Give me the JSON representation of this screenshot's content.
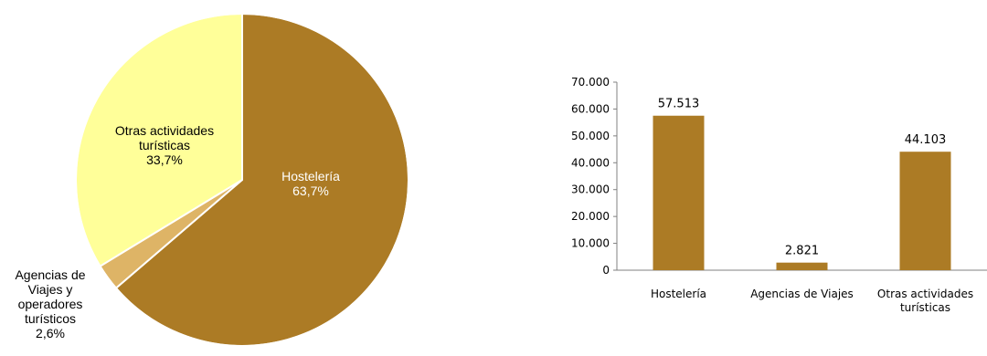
{
  "chart_data": [
    {
      "type": "pie",
      "labels": [
        "Hostelería",
        "Agencias de Viajes y operadores turísticos",
        "Otras actividades turísticas"
      ],
      "label_lines": [
        [
          "Hostelería",
          "63,7%"
        ],
        [
          "Agencias de",
          "Viajes y",
          "operadores",
          "turísticos",
          "2,6%"
        ],
        [
          "Otras actividades",
          "turísticas",
          "33,7%"
        ]
      ],
      "values": [
        63.7,
        2.6,
        33.7
      ],
      "colors": [
        "#AC7B25",
        "#DEB466",
        "#FFFF99"
      ]
    },
    {
      "type": "bar",
      "categories": [
        "Hostelería",
        "Agencias de Viajes",
        "Otras actividades turísticas"
      ],
      "category_lines": [
        [
          "Hostelería"
        ],
        [
          "Agencias de Viajes"
        ],
        [
          "Otras actividades",
          "turísticas"
        ]
      ],
      "values": [
        57513,
        2821,
        44103
      ],
      "value_labels": [
        "57.513",
        "2.821",
        "44.103"
      ],
      "ylim": [
        0,
        70000
      ],
      "yticks": [
        0,
        10000,
        20000,
        30000,
        40000,
        50000,
        60000,
        70000
      ],
      "ytick_labels": [
        "0",
        "10.000",
        "20.000",
        "30.000",
        "40.000",
        "50.000",
        "60.000",
        "70.000"
      ],
      "bar_color": "#AC7B25",
      "grid": false
    }
  ]
}
